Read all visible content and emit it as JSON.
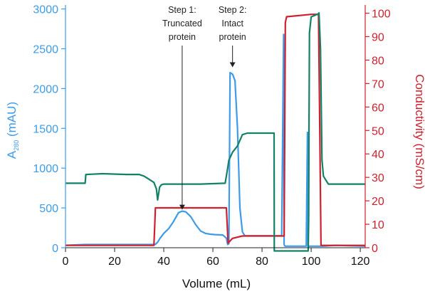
{
  "chart_data": {
    "type": "line",
    "xlabel": "Volume (mL)",
    "ylabel_left": {
      "prefix": "A",
      "sub": "280",
      "suffix": " (mAU)"
    },
    "ylabel_right": "Conductivity (mS/cm)",
    "xlim": [
      0,
      122
    ],
    "ylim_left": [
      0,
      3050
    ],
    "ylim_right": [
      0,
      103.5
    ],
    "x_ticks": [
      0,
      20,
      40,
      60,
      80,
      100,
      120
    ],
    "y_left_ticks": [
      0,
      500,
      1000,
      1500,
      2000,
      2500,
      3000
    ],
    "y_right_ticks": [
      0,
      10,
      20,
      30,
      40,
      50,
      60,
      70,
      80,
      90,
      100
    ],
    "grid": false,
    "colors": {
      "uv": "#3d9be9",
      "conductivity": "#d0202e",
      "concentration": "#128266",
      "left_axis": "#3d9be9",
      "right_axis": "#d0202e"
    },
    "series": [
      {
        "key": "uv",
        "axis": "left",
        "x": [
          0,
          8,
          20,
          30,
          35,
          36.5,
          37.5,
          38.5,
          40,
          42,
          44,
          46,
          47.5,
          49,
          51,
          53,
          55,
          57,
          59,
          61,
          64,
          65.5,
          66,
          66.5,
          67,
          68,
          69,
          70,
          70.5,
          71,
          72,
          73,
          74,
          76,
          80,
          85,
          88,
          88.8,
          89,
          89.3,
          89.6,
          90,
          92,
          95,
          98,
          98.5,
          98.7,
          99,
          99.3,
          99.6,
          100,
          102,
          105,
          110,
          115,
          122
        ],
        "y": [
          30,
          40,
          40,
          40,
          40,
          40,
          70,
          120,
          180,
          240,
          330,
          440,
          460,
          450,
          390,
          290,
          210,
          180,
          170,
          165,
          160,
          120,
          40,
          50,
          2200,
          2180,
          2100,
          1500,
          1000,
          500,
          200,
          150,
          150,
          150,
          150,
          150,
          150,
          2680,
          40,
          20,
          20,
          20,
          20,
          20,
          20,
          1450,
          20,
          20,
          20,
          20,
          20,
          20,
          20,
          30,
          25,
          20
        ]
      },
      {
        "key": "conductivity",
        "axis": "right",
        "x": [
          0,
          36,
          36.3,
          36.6,
          65.5,
          65.8,
          66.2,
          68,
          72,
          75,
          85,
          89,
          89.2,
          89.5,
          90,
          100,
          102,
          103,
          103.5,
          104,
          105,
          122
        ],
        "y": [
          1,
          1,
          9,
          17,
          17,
          10,
          2,
          4,
          5,
          5,
          5,
          5,
          40,
          96,
          98.5,
          99.5,
          99.5,
          99.5,
          50,
          1,
          1,
          1
        ]
      },
      {
        "key": "concentration",
        "axis": "left",
        "x": [
          0,
          8,
          8.3,
          15,
          25,
          30,
          32,
          34,
          36,
          37,
          37.5,
          38.3,
          39,
          40,
          45,
          55,
          65,
          66,
          66.5,
          68,
          70,
          72,
          74,
          84.9,
          85,
          98.8,
          99,
          99.1,
          99.3,
          100,
          103,
          103.2,
          103.8,
          104.4,
          105,
          107,
          122
        ],
        "y": [
          810,
          810,
          920,
          930,
          920,
          920,
          900,
          860,
          820,
          740,
          600,
          760,
          790,
          800,
          800,
          800,
          810,
          1000,
          1100,
          1200,
          1280,
          1420,
          1440,
          1440,
          -40,
          -40,
          350,
          1400,
          2700,
          2900,
          2940,
          2950,
          2500,
          1100,
          900,
          800,
          800
        ]
      }
    ],
    "annotations": [
      {
        "lines": [
          "Step 1:",
          "Truncated",
          "protein"
        ],
        "x": 47.5,
        "arrow_to_y": 460
      },
      {
        "lines": [
          "Step 2:",
          "Intact",
          "protein"
        ],
        "x": 68,
        "arrow_to_y": 2250
      }
    ]
  }
}
